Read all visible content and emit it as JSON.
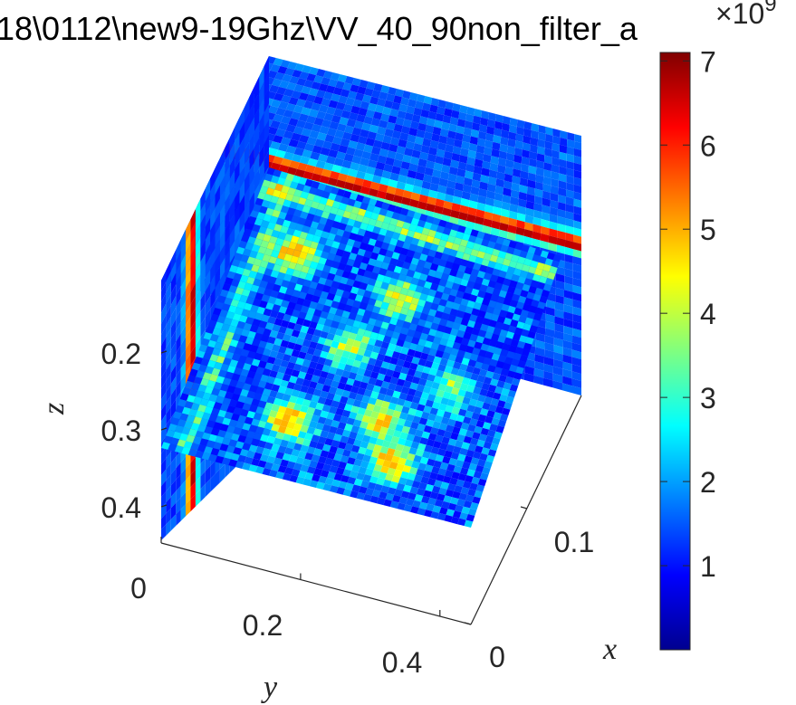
{
  "chart_data": {
    "type": "heatmap",
    "title": "18\\0112\\new9-19Ghz\\VV_40_90non_filter_a",
    "xlabel": "x",
    "ylabel": "y",
    "zlabel": "z",
    "x_ticks": [
      "0",
      "0.1"
    ],
    "y_ticks": [
      "0",
      "0.2",
      "0.4"
    ],
    "z_ticks": [
      "0.2",
      "0.3",
      "0.4"
    ],
    "colorbar": {
      "exponent": "×10",
      "exponent_power": "9",
      "ticks": [
        "1",
        "2",
        "3",
        "4",
        "5",
        "6",
        "7"
      ],
      "range": [
        0,
        7.1
      ],
      "colormap": "jet"
    },
    "xlim": [
      0,
      0.16
    ],
    "ylim": [
      0,
      0.5
    ],
    "zlim": [
      0.14,
      0.45
    ],
    "z_reversed": true,
    "slices": [
      {
        "name": "z-slice",
        "value": 0.3
      },
      {
        "name": "x-slice",
        "value": 0.155
      },
      {
        "name": "y-slice",
        "value": 0.0
      }
    ]
  }
}
